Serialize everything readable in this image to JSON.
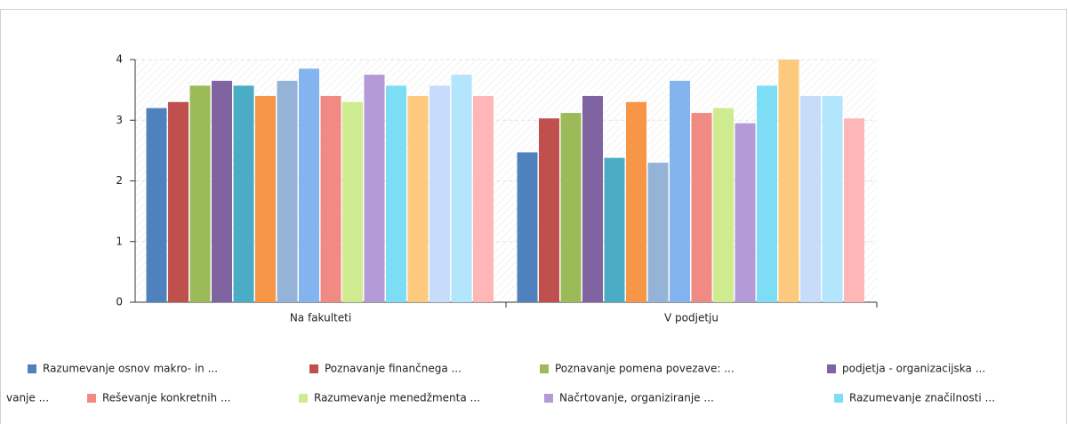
{
  "chart_data": {
    "type": "bar",
    "categories": [
      "Na fakulteti",
      "V podjetju"
    ],
    "ylim": [
      0,
      4
    ],
    "yticks": [
      0,
      1,
      2,
      3,
      4
    ],
    "grid": true,
    "series": [
      {
        "name": "Razumevanje osnov makro- in ...",
        "color": "#4f81bd",
        "values": [
          3.2,
          2.47
        ]
      },
      {
        "name": "Poznavanje finančnega ...",
        "color": "#c0504d",
        "values": [
          3.3,
          3.03
        ]
      },
      {
        "name": "Poznavanje pomena povezave: ...",
        "color": "#9bbb59",
        "values": [
          3.57,
          3.12
        ]
      },
      {
        "name": "podjetja -  organizacijska ...",
        "color": "#8064a2",
        "values": [
          3.65,
          3.4
        ]
      },
      {
        "name": null,
        "color": "#4bacc6",
        "values": [
          3.57,
          2.38
        ]
      },
      {
        "name": null,
        "color": "#f79646",
        "values": [
          3.4,
          3.3
        ]
      },
      {
        "name": null,
        "color": "#95b3d7",
        "values": [
          3.65,
          2.3
        ]
      },
      {
        "name": "vanje ...",
        "color": "#84b4f0",
        "values": [
          3.85,
          3.65
        ]
      },
      {
        "name": "Reševanje konkretnih ...",
        "color": "#f28a84",
        "values": [
          3.4,
          3.12
        ]
      },
      {
        "name": "Razumevanje menedžmenta ...",
        "color": "#cfeb8f",
        "values": [
          3.3,
          3.2
        ]
      },
      {
        "name": "Načrtovanje, organiziranje ...",
        "color": "#b49ad6",
        "values": [
          3.75,
          2.95
        ]
      },
      {
        "name": "Razumevanje značilnosti ...",
        "color": "#7dddf5",
        "values": [
          3.57,
          3.57
        ]
      },
      {
        "name": null,
        "color": "#fdc97f",
        "values": [
          3.4,
          4.0
        ]
      },
      {
        "name": null,
        "color": "#c6dcfa",
        "values": [
          3.57,
          3.4
        ]
      },
      {
        "name": null,
        "color": "#b3e5fc",
        "values": [
          3.75,
          3.4
        ]
      },
      {
        "name": null,
        "color": "#ffb6b6",
        "values": [
          3.4,
          3.03
        ]
      }
    ]
  }
}
